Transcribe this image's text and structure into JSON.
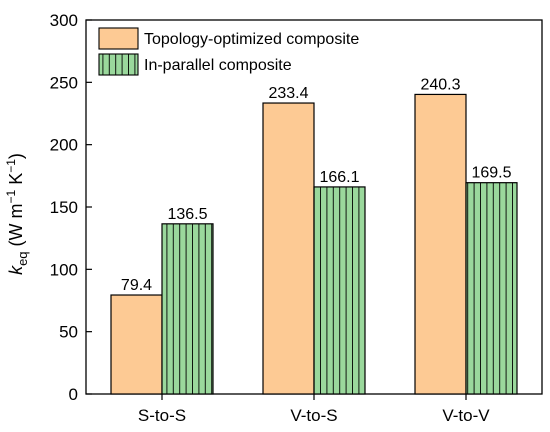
{
  "chart_data": {
    "type": "bar",
    "title": "",
    "xlabel": "",
    "ylabel": {
      "italic": "k",
      "subscript": "eq",
      "units_open": " (W m",
      "units_exp1": "−1",
      "units_mid": " K",
      "units_exp2": "−1",
      "units_close": ")"
    },
    "ylim": [
      0,
      300
    ],
    "yticks": [
      0,
      50,
      100,
      150,
      200,
      250,
      300
    ],
    "categories": [
      "S-to-S",
      "V-to-S",
      "V-to-V"
    ],
    "series": [
      {
        "name": "Topology-optimized composite",
        "values": [
          79.4,
          233.4,
          240.3
        ],
        "labels": [
          "79.4",
          "233.4",
          "240.3"
        ],
        "color": "#fdca94",
        "pattern": "solid"
      },
      {
        "name": "In-parallel composite",
        "values": [
          136.5,
          166.1,
          169.5
        ],
        "labels": [
          "136.5",
          "166.1",
          "169.5"
        ],
        "color": "#9ad89c",
        "pattern": "vertical-lines"
      }
    ],
    "legend": {
      "position": "top-left"
    },
    "grid": false
  }
}
